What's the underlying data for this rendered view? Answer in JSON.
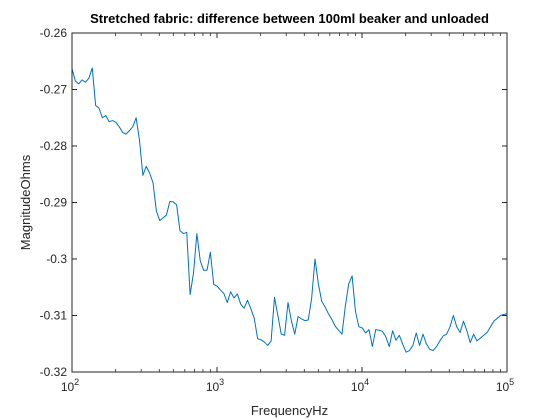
{
  "chart_data": {
    "type": "line",
    "title": "Stretched fabric: difference between 100ml beaker and unloaded",
    "xlabel": "FrequencyHz",
    "ylabel": "MagnitudeOhms",
    "x_scale": "log",
    "xlim": [
      100,
      100000
    ],
    "ylim": [
      -0.32,
      -0.26
    ],
    "x_ticks": [
      {
        "value": 100,
        "base": "10",
        "exp": "2"
      },
      {
        "value": 1000,
        "base": "10",
        "exp": "3"
      },
      {
        "value": 10000,
        "base": "10",
        "exp": "4"
      },
      {
        "value": 100000,
        "base": "10",
        "exp": "5"
      }
    ],
    "y_ticks": [
      {
        "value": -0.32,
        "label": "-0.32"
      },
      {
        "value": -0.31,
        "label": "-0.31"
      },
      {
        "value": -0.3,
        "label": "-0.3"
      },
      {
        "value": -0.29,
        "label": "-0.29"
      },
      {
        "value": -0.28,
        "label": "-0.28"
      },
      {
        "value": -0.27,
        "label": "-0.27"
      },
      {
        "value": -0.26,
        "label": "-0.26"
      }
    ],
    "grid": false,
    "line_color": "#0072BD",
    "series": [
      {
        "x": [
          100,
          105.5,
          111.3,
          117.4,
          123.9,
          130.7,
          137.9,
          145.5,
          153.5,
          162.0,
          170.9,
          180.3,
          190.2,
          200.7,
          211.7,
          223.4,
          235.7,
          248.7,
          262.4,
          276.8,
          292.1,
          308.1,
          325.1,
          343.0,
          361.9,
          381.8,
          402.8,
          425.0,
          448.4,
          473.0,
          499.1,
          526.6,
          555.6,
          586.1,
          618.4,
          652.5,
          688.4,
          726.3,
          766.3,
          808.5,
          853.0,
          899.9,
          949.5,
          1001.8,
          1056.9,
          1115.1,
          1176.5,
          1241.3,
          1309.6,
          1381.7,
          1457.8,
          1538.1,
          1622.8,
          1712.1,
          1806.4,
          1905.8,
          2010.8,
          2121.5,
          2238.3,
          2361.5,
          2491.6,
          2628.7,
          2773.5,
          2926.2,
          3087.3,
          3257.3,
          3436.6,
          3625.8,
          3825.4,
          4036.0,
          4258.2,
          4492.7,
          4740.0,
          5001.0,
          5276.3,
          5566.8,
          5873.3,
          6196.7,
          6537.9,
          6897.8,
          7277.6,
          7678.3,
          8101.0,
          8547.0,
          9017.6,
          9514.1,
          10037.9,
          10590.6,
          11173.7,
          11788.9,
          12437.9,
          13122.7,
          13845.2,
          14607.5,
          15411.7,
          16260.2,
          17155.5,
          18100.0,
          19096.5,
          20147.9,
          21257.2,
          22427.6,
          23662.4,
          24965.2,
          26339.7,
          27789.9,
          29319.9,
          30934.2,
          32637.4,
          34434.3,
          36330.2,
          38330.4,
          40440.8,
          42667.3,
          45016.5,
          47495.0,
          50110.0,
          52868.9,
          55779.8,
          58850.9,
          62091.1,
          65509.6,
          69116.4,
          72921.8,
          76936.6,
          81172.5,
          85641.7,
          90356.8,
          95331.6,
          100000
        ],
        "y": [
          -0.2663,
          -0.2685,
          -0.269,
          -0.2683,
          -0.2687,
          -0.268,
          -0.2662,
          -0.2728,
          -0.2733,
          -0.275,
          -0.2746,
          -0.2757,
          -0.2755,
          -0.2758,
          -0.2766,
          -0.2776,
          -0.2779,
          -0.2773,
          -0.2766,
          -0.275,
          -0.279,
          -0.2852,
          -0.2836,
          -0.2848,
          -0.2865,
          -0.2915,
          -0.2932,
          -0.2927,
          -0.2922,
          -0.2898,
          -0.2899,
          -0.2904,
          -0.295,
          -0.2955,
          -0.2953,
          -0.3063,
          -0.3025,
          -0.2955,
          -0.3003,
          -0.302,
          -0.302,
          -0.2988,
          -0.3045,
          -0.3048,
          -0.3055,
          -0.3061,
          -0.3077,
          -0.3058,
          -0.3069,
          -0.3062,
          -0.308,
          -0.3087,
          -0.3073,
          -0.3088,
          -0.3105,
          -0.3141,
          -0.3143,
          -0.3147,
          -0.3153,
          -0.3145,
          -0.3068,
          -0.31,
          -0.3133,
          -0.3135,
          -0.3077,
          -0.3109,
          -0.3133,
          -0.3102,
          -0.3106,
          -0.3109,
          -0.3108,
          -0.307,
          -0.3,
          -0.3044,
          -0.3075,
          -0.3085,
          -0.3097,
          -0.3107,
          -0.3119,
          -0.3126,
          -0.3133,
          -0.3083,
          -0.3044,
          -0.303,
          -0.3093,
          -0.312,
          -0.3122,
          -0.3131,
          -0.3125,
          -0.3155,
          -0.3125,
          -0.3126,
          -0.3128,
          -0.3138,
          -0.3155,
          -0.3127,
          -0.3144,
          -0.3135,
          -0.3151,
          -0.3165,
          -0.3162,
          -0.3153,
          -0.3131,
          -0.3153,
          -0.3133,
          -0.315,
          -0.316,
          -0.3162,
          -0.3155,
          -0.3145,
          -0.3136,
          -0.3133,
          -0.312,
          -0.31,
          -0.312,
          -0.313,
          -0.311,
          -0.3127,
          -0.3148,
          -0.3133,
          -0.3145,
          -0.314,
          -0.3135,
          -0.313,
          -0.312,
          -0.311,
          -0.3105,
          -0.31,
          -0.3098,
          -0.3097
        ]
      }
    ]
  }
}
